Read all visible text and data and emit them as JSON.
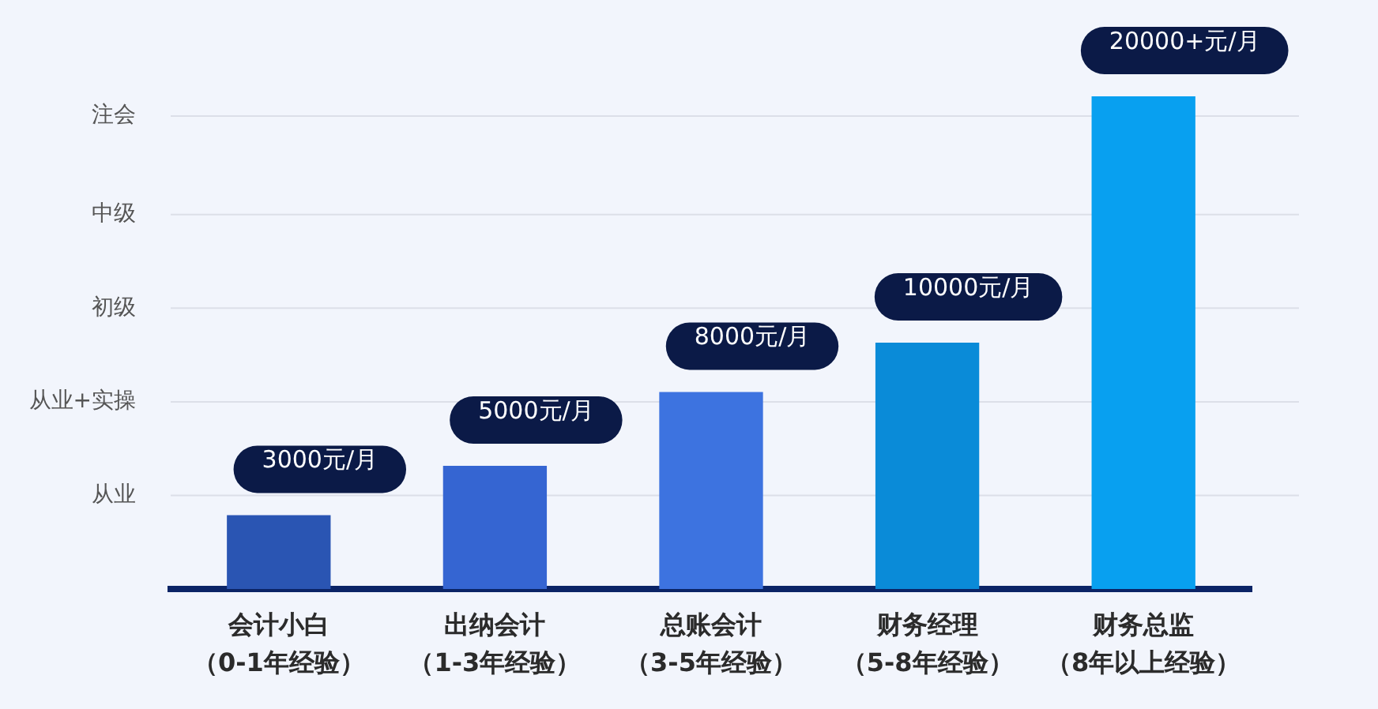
{
  "chart_data": {
    "type": "bar",
    "ylim": [
      0,
      20000
    ],
    "categories": [
      "会计小白（0-1年经验）",
      "出纳会计（1-3年经验）",
      "总账会计（3-5年经验）",
      "财务经理（5-8年经验）",
      "财务总监（8年以上经验）"
    ],
    "values": [
      3000,
      5000,
      8000,
      10000,
      20000
    ],
    "colors": [
      "#2a55b3",
      "#3565d2",
      "#3d73e0",
      "#0a8bd8",
      "#08a0f0"
    ],
    "value_labels": [
      "3000元/月",
      "5000元/月",
      "8000元/月",
      "10000元/月",
      "20000+元/月"
    ],
    "ref_lines": [
      {
        "axis": "y",
        "value": 3800,
        "label": "从业",
        "color": "#dcdfe8"
      },
      {
        "axis": "y",
        "value": 7600,
        "label": "从业+实操",
        "color": "#dcdfe8"
      },
      {
        "axis": "y",
        "value": 11400,
        "label": "初级",
        "color": "#dcdfe8"
      },
      {
        "axis": "y",
        "value": 15200,
        "label": "中级",
        "color": "#dcdfe8"
      },
      {
        "axis": "y",
        "value": 19200,
        "label": "注会",
        "color": "#dcdfe8"
      }
    ],
    "legend": false
  }
}
